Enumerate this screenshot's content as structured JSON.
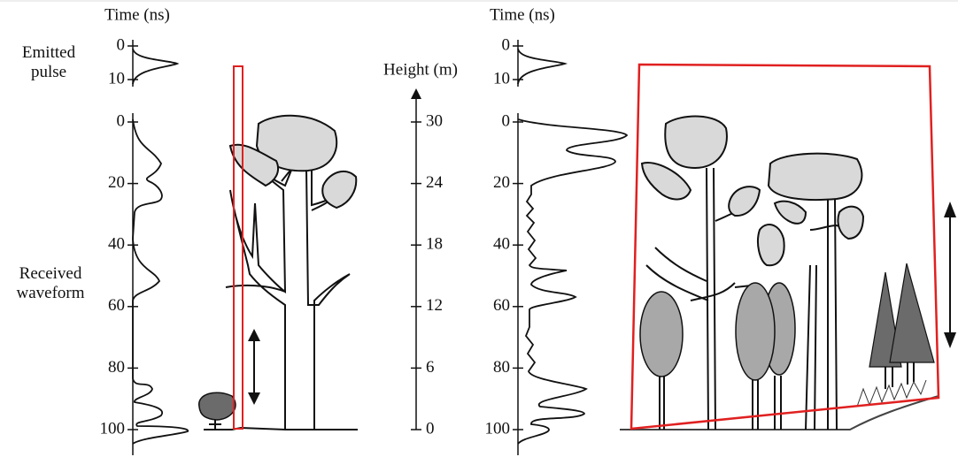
{
  "left": {
    "time_label": "Time (ns)",
    "emitted_label": "Emitted pulse",
    "received_label": "Received waveform",
    "emitted_ticks": [
      0,
      10
    ],
    "received_ticks": [
      0,
      20,
      40,
      60,
      80,
      100
    ]
  },
  "height_axis": {
    "label": "Height (m)",
    "ticks": [
      0,
      6,
      12,
      18,
      24,
      30
    ]
  },
  "right": {
    "time_label": "Time (ns)",
    "emitted_ticks": [
      0,
      10
    ],
    "received_ticks": [
      0,
      20,
      40,
      60,
      80,
      100
    ]
  }
}
